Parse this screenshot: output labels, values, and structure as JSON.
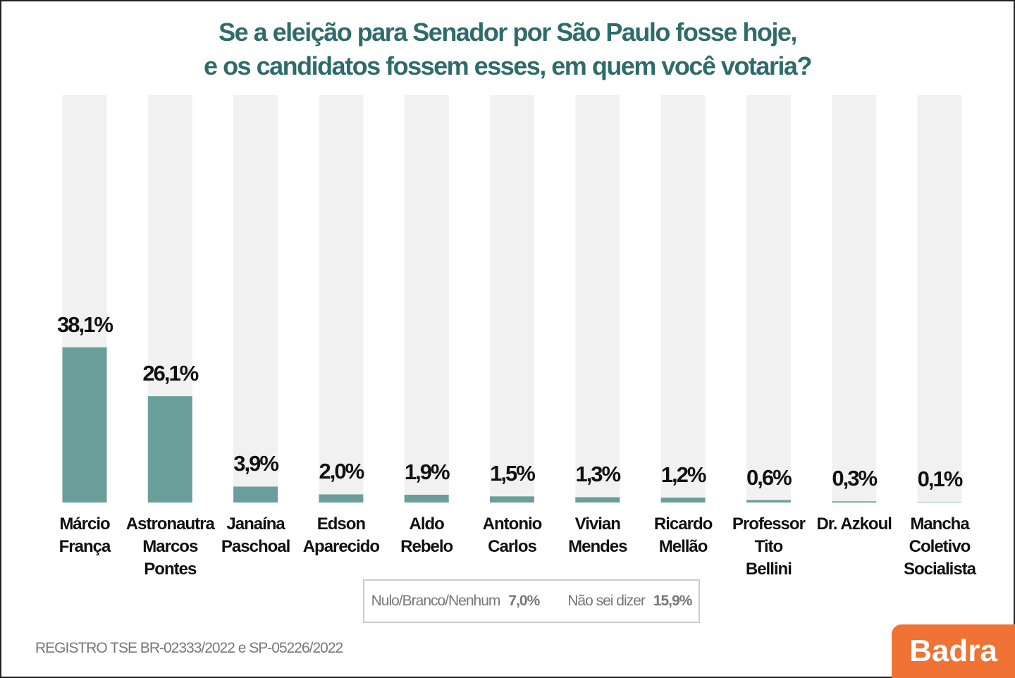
{
  "chart_data": {
    "type": "bar",
    "title": "Se a eleição para Senador por São Paulo fosse hoje,\ne os candidatos fossem esses, em quem você votaria?",
    "categories": [
      "Márcio\nFrança",
      "Astronautra\nMarcos\nPontes",
      "Janaína\nPaschoal",
      "Edson\nAparecido",
      "Aldo\nRebelo",
      "Antonio\nCarlos",
      "Vivian\nMendes",
      "Ricardo\nMellão",
      "Professor\nTito\nBellini",
      "Dr. Azkoul",
      "Mancha\nColetivo\nSocialista"
    ],
    "values": [
      38.1,
      26.1,
      3.9,
      2.0,
      1.9,
      1.5,
      1.3,
      1.2,
      0.6,
      0.3,
      0.1
    ],
    "value_labels": [
      "38,1%",
      "26,1%",
      "3,9%",
      "2,0%",
      "1,9%",
      "1,5%",
      "1,3%",
      "1,2%",
      "0,6%",
      "0,3%",
      "0,1%"
    ],
    "color": "#6a9e9a",
    "track_color": "#f1f1f1",
    "ylim": [
      0,
      100
    ],
    "summary": [
      {
        "label": "Nulo/Branco/Nenhum",
        "value": 7.0,
        "value_label": "7,0%"
      },
      {
        "label": "Não sei dizer",
        "value": 15.9,
        "value_label": "15,9%"
      }
    ],
    "footnote": "REGISTRO TSE BR-02333/2022 e SP-05226/2022",
    "logo": "Badra"
  }
}
